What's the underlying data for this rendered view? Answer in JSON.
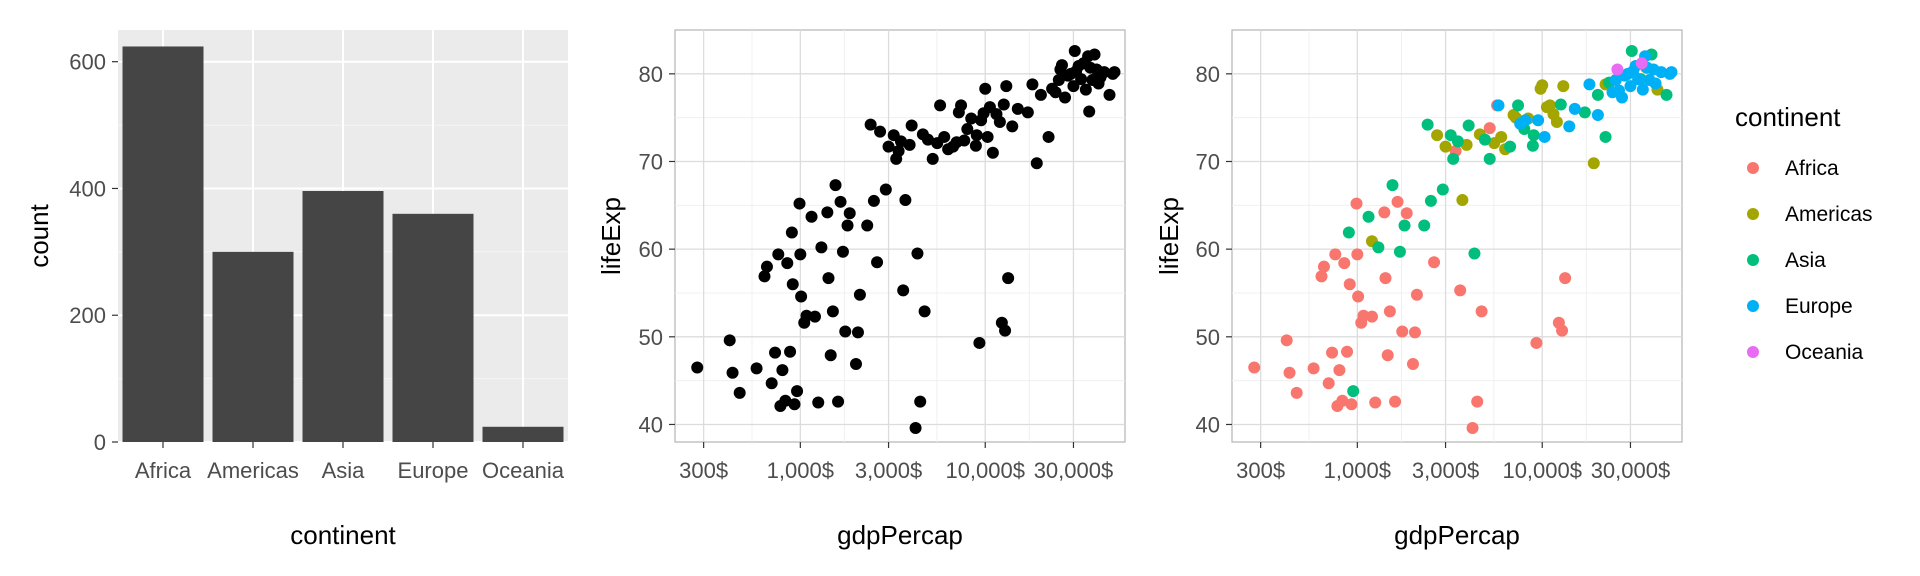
{
  "chart_data": [
    {
      "type": "bar",
      "xlabel": "continent",
      "ylabel": "count",
      "categories": [
        "Africa",
        "Americas",
        "Asia",
        "Europe",
        "Oceania"
      ],
      "values": [
        624,
        300,
        396,
        360,
        24
      ],
      "ylim": [
        0,
        650
      ],
      "yticks": [
        0,
        200,
        400,
        600
      ],
      "ytick_labels": [
        "0",
        "200",
        "400",
        "600"
      ],
      "bar_color": "#454545",
      "panel_background": "#ebebeb",
      "grid": true
    },
    {
      "type": "scatter",
      "xlabel": "gdpPercap",
      "ylabel": "lifeExp",
      "xscale": "log",
      "xlim": [
        210,
        57000
      ],
      "ylim": [
        38,
        85
      ],
      "xticks": [
        300,
        1000,
        3000,
        10000,
        30000
      ],
      "xtick_labels": [
        "300$",
        "1,000$",
        "3,000$",
        "10,000$",
        "30,000$"
      ],
      "yticks": [
        40,
        50,
        60,
        70,
        80
      ],
      "ytick_labels": [
        "40",
        "50",
        "60",
        "70",
        "80"
      ],
      "point_color": "#000000",
      "panel_background": "#ffffff",
      "grid": true,
      "points": [
        [
          277,
          46.5
        ],
        [
          430,
          45.9
        ],
        [
          415,
          49.6
        ],
        [
          470,
          43.6
        ],
        [
          580,
          46.4
        ],
        [
          640,
          56.9
        ],
        [
          660,
          58.0
        ],
        [
          700,
          44.7
        ],
        [
          730,
          48.2
        ],
        [
          760,
          59.4
        ],
        [
          780,
          42.1
        ],
        [
          800,
          46.2
        ],
        [
          830,
          42.7
        ],
        [
          850,
          58.4
        ],
        [
          880,
          48.3
        ],
        [
          900,
          61.9
        ],
        [
          910,
          56.0
        ],
        [
          930,
          42.3
        ],
        [
          960,
          43.8
        ],
        [
          990,
          65.2
        ],
        [
          1000,
          59.4
        ],
        [
          1010,
          54.6
        ],
        [
          1050,
          51.6
        ],
        [
          1080,
          52.4
        ],
        [
          1150,
          63.7
        ],
        [
          1200,
          52.3
        ],
        [
          1250,
          42.5
        ],
        [
          1300,
          60.2
        ],
        [
          1400,
          64.2
        ],
        [
          1420,
          56.7
        ],
        [
          1460,
          47.9
        ],
        [
          1500,
          52.9
        ],
        [
          1550,
          67.3
        ],
        [
          1600,
          42.6
        ],
        [
          1650,
          65.4
        ],
        [
          1700,
          59.7
        ],
        [
          1750,
          50.6
        ],
        [
          1800,
          62.7
        ],
        [
          1850,
          64.1
        ],
        [
          2000,
          46.9
        ],
        [
          2050,
          50.5
        ],
        [
          2100,
          54.8
        ],
        [
          2300,
          62.7
        ],
        [
          2500,
          65.5
        ],
        [
          2600,
          58.5
        ],
        [
          2400,
          74.2
        ],
        [
          2700,
          73.4
        ],
        [
          2900,
          66.8
        ],
        [
          3000,
          71.7
        ],
        [
          3200,
          73.0
        ],
        [
          3300,
          70.3
        ],
        [
          3400,
          71.2
        ],
        [
          3500,
          72.3
        ],
        [
          3600,
          55.3
        ],
        [
          3700,
          65.6
        ],
        [
          3900,
          71.9
        ],
        [
          4000,
          74.1
        ],
        [
          4200,
          39.6
        ],
        [
          4300,
          59.5
        ],
        [
          4450,
          42.6
        ],
        [
          4600,
          73.1
        ],
        [
          4700,
          52.9
        ],
        [
          4900,
          72.5
        ],
        [
          5200,
          70.3
        ],
        [
          5500,
          72.1
        ],
        [
          5700,
          76.4
        ],
        [
          6000,
          72.8
        ],
        [
          6300,
          71.4
        ],
        [
          6700,
          71.7
        ],
        [
          7000,
          72.2
        ],
        [
          7200,
          75.6
        ],
        [
          7400,
          76.4
        ],
        [
          7700,
          72.4
        ],
        [
          8000,
          73.7
        ],
        [
          8400,
          74.9
        ],
        [
          8900,
          71.8
        ],
        [
          9000,
          73.0
        ],
        [
          9300,
          49.3
        ],
        [
          9500,
          74.7
        ],
        [
          9800,
          75.5
        ],
        [
          10000,
          78.3
        ],
        [
          10300,
          72.8
        ],
        [
          10600,
          76.2
        ],
        [
          11000,
          71.0
        ],
        [
          11500,
          75.4
        ],
        [
          12000,
          74.5
        ],
        [
          12300,
          51.6
        ],
        [
          12600,
          76.5
        ],
        [
          12800,
          50.7
        ],
        [
          13000,
          78.6
        ],
        [
          13300,
          56.7
        ],
        [
          14000,
          74.0
        ],
        [
          15000,
          76.0
        ],
        [
          17000,
          75.6
        ],
        [
          18000,
          78.8
        ],
        [
          19000,
          69.8
        ],
        [
          20000,
          77.6
        ],
        [
          22000,
          72.8
        ],
        [
          23000,
          78.3
        ],
        [
          24000,
          77.9
        ],
        [
          25000,
          79.3
        ],
        [
          25500,
          80.5
        ],
        [
          26000,
          81.0
        ],
        [
          27000,
          77.3
        ],
        [
          28000,
          79.8
        ],
        [
          29000,
          80.0
        ],
        [
          30000,
          78.6
        ],
        [
          30500,
          82.6
        ],
        [
          31000,
          80.3
        ],
        [
          32000,
          80.9
        ],
        [
          33000,
          79.4
        ],
        [
          34000,
          81.2
        ],
        [
          35000,
          78.2
        ],
        [
          36000,
          82.0
        ],
        [
          36500,
          75.7
        ],
        [
          37000,
          80.7
        ],
        [
          38000,
          79.3
        ],
        [
          39000,
          82.2
        ],
        [
          40000,
          80.5
        ],
        [
          41000,
          78.9
        ],
        [
          42000,
          79.6
        ],
        [
          44000,
          80.2
        ],
        [
          47000,
          77.6
        ],
        [
          49000,
          80.0
        ],
        [
          50000,
          80.2
        ]
      ]
    },
    {
      "type": "scatter",
      "xlabel": "gdpPercap",
      "ylabel": "lifeExp",
      "xscale": "log",
      "xlim": [
        210,
        57000
      ],
      "ylim": [
        38,
        85
      ],
      "xticks": [
        300,
        1000,
        3000,
        10000,
        30000
      ],
      "xtick_labels": [
        "300$",
        "1,000$",
        "3,000$",
        "10,000$",
        "30,000$"
      ],
      "yticks": [
        40,
        50,
        60,
        70,
        80
      ],
      "ytick_labels": [
        "40",
        "50",
        "60",
        "70",
        "80"
      ],
      "panel_background": "#ffffff",
      "grid": true,
      "legend": {
        "title": "continent",
        "position": "right"
      },
      "series": [
        {
          "name": "Africa",
          "color": "#F8766D",
          "points": [
            [
              277,
              46.5
            ],
            [
              430,
              45.9
            ],
            [
              415,
              49.6
            ],
            [
              470,
              43.6
            ],
            [
              580,
              46.4
            ],
            [
              640,
              56.9
            ],
            [
              660,
              58.0
            ],
            [
              700,
              44.7
            ],
            [
              730,
              48.2
            ],
            [
              760,
              59.4
            ],
            [
              780,
              42.1
            ],
            [
              800,
              46.2
            ],
            [
              830,
              42.7
            ],
            [
              850,
              58.4
            ],
            [
              880,
              48.3
            ],
            [
              910,
              56.0
            ],
            [
              930,
              42.3
            ],
            [
              990,
              65.2
            ],
            [
              1000,
              59.4
            ],
            [
              1010,
              54.6
            ],
            [
              1050,
              51.6
            ],
            [
              1080,
              52.4
            ],
            [
              1200,
              52.3
            ],
            [
              1250,
              42.5
            ],
            [
              1400,
              64.2
            ],
            [
              1420,
              56.7
            ],
            [
              1460,
              47.9
            ],
            [
              1500,
              52.9
            ],
            [
              1600,
              42.6
            ],
            [
              1650,
              65.4
            ],
            [
              1750,
              50.6
            ],
            [
              1850,
              64.1
            ],
            [
              2000,
              46.9
            ],
            [
              2050,
              50.5
            ],
            [
              2100,
              54.8
            ],
            [
              2600,
              58.5
            ],
            [
              3400,
              71.2
            ],
            [
              3600,
              55.3
            ],
            [
              4200,
              39.6
            ],
            [
              4450,
              42.6
            ],
            [
              4700,
              52.9
            ],
            [
              5700,
              76.4
            ],
            [
              5200,
              73.8
            ],
            [
              9300,
              49.3
            ],
            [
              12300,
              51.6
            ],
            [
              12800,
              50.7
            ],
            [
              13300,
              56.7
            ]
          ]
        },
        {
          "name": "Americas",
          "color": "#A3A500",
          "points": [
            [
              1200,
              60.9
            ],
            [
              2700,
              73.0
            ],
            [
              3700,
              65.6
            ],
            [
              3000,
              71.7
            ],
            [
              3900,
              71.9
            ],
            [
              4600,
              73.1
            ],
            [
              5500,
              72.1
            ],
            [
              6000,
              72.8
            ],
            [
              6300,
              71.4
            ],
            [
              7000,
              75.3
            ],
            [
              7200,
              75.0
            ],
            [
              8400,
              74.9
            ],
            [
              9800,
              78.3
            ],
            [
              10000,
              78.7
            ],
            [
              10600,
              76.2
            ],
            [
              11000,
              76.4
            ],
            [
              11500,
              75.4
            ],
            [
              12000,
              74.5
            ],
            [
              13000,
              78.6
            ],
            [
              19000,
              69.8
            ],
            [
              22000,
              78.8
            ],
            [
              36500,
              80.7
            ],
            [
              42000,
              78.2
            ]
          ]
        },
        {
          "name": "Asia",
          "color": "#00BF7D",
          "points": [
            [
              900,
              61.9
            ],
            [
              950,
              43.8
            ],
            [
              1150,
              63.7
            ],
            [
              1300,
              60.2
            ],
            [
              1550,
              67.3
            ],
            [
              1700,
              59.7
            ],
            [
              1800,
              62.7
            ],
            [
              2300,
              62.7
            ],
            [
              2500,
              65.5
            ],
            [
              2400,
              74.2
            ],
            [
              2900,
              66.8
            ],
            [
              3200,
              73.0
            ],
            [
              3300,
              70.3
            ],
            [
              3500,
              72.3
            ],
            [
              4000,
              74.1
            ],
            [
              4300,
              59.5
            ],
            [
              4900,
              72.5
            ],
            [
              5200,
              70.3
            ],
            [
              6700,
              71.7
            ],
            [
              7400,
              76.4
            ],
            [
              8000,
              73.7
            ],
            [
              8900,
              71.8
            ],
            [
              9000,
              73.0
            ],
            [
              12600,
              76.5
            ],
            [
              17000,
              75.6
            ],
            [
              20000,
              77.6
            ],
            [
              22000,
              72.8
            ],
            [
              23000,
              79.0
            ],
            [
              30500,
              82.6
            ],
            [
              34000,
              79.4
            ],
            [
              39000,
              82.2
            ],
            [
              47000,
              77.6
            ]
          ]
        },
        {
          "name": "Europe",
          "color": "#00B0F6",
          "points": [
            [
              5800,
              76.4
            ],
            [
              7600,
              74.3
            ],
            [
              8100,
              74.7
            ],
            [
              9500,
              74.7
            ],
            [
              10300,
              72.8
            ],
            [
              14000,
              74.0
            ],
            [
              15000,
              76.0
            ],
            [
              18000,
              78.8
            ],
            [
              20000,
              75.3
            ],
            [
              24000,
              77.9
            ],
            [
              25000,
              79.3
            ],
            [
              26000,
              78.1
            ],
            [
              27000,
              77.3
            ],
            [
              28000,
              79.8
            ],
            [
              29000,
              80.0
            ],
            [
              30000,
              78.6
            ],
            [
              31000,
              80.3
            ],
            [
              32000,
              80.9
            ],
            [
              33000,
              79.4
            ],
            [
              35000,
              78.2
            ],
            [
              36000,
              82.0
            ],
            [
              37000,
              80.7
            ],
            [
              38000,
              79.3
            ],
            [
              40000,
              80.5
            ],
            [
              41000,
              78.9
            ],
            [
              44000,
              80.2
            ],
            [
              49000,
              80.0
            ],
            [
              50000,
              80.2
            ]
          ]
        },
        {
          "name": "Oceania",
          "color": "#E76BF3",
          "points": [
            [
              25500,
              80.5
            ],
            [
              34500,
              81.2
            ]
          ]
        }
      ]
    }
  ]
}
